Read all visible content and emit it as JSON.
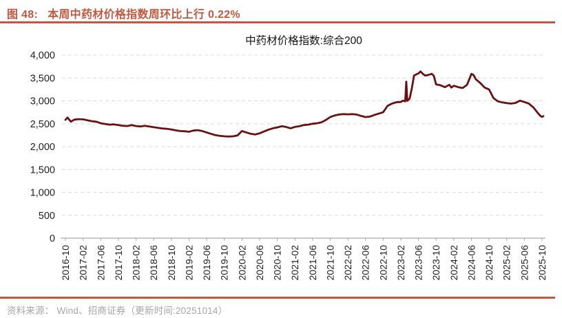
{
  "page": {
    "figure_label": "图 48:",
    "figure_title": "本周中药材价格指数周环比上行 0.22%",
    "source_note": "资料来源： Wind、招商证券（更新时间:20251014）",
    "accent_color": "#C1583E"
  },
  "chart_data": {
    "type": "line",
    "title": "中药材价格指数:综合200",
    "xlabel": "",
    "ylabel": "",
    "legend_position": "none",
    "grid": "horizontal-dashed",
    "line_color": "#6B100F",
    "grid_color": "#D9D9D9",
    "axis_color": "#A6A6A6",
    "tick_text_color": "#1f1f1f",
    "ylim": [
      0,
      4000
    ],
    "y_ticks": [
      {
        "value": 0,
        "label": "0"
      },
      {
        "value": 500,
        "label": "500"
      },
      {
        "value": 1000,
        "label": "1,000"
      },
      {
        "value": 1500,
        "label": "1,500"
      },
      {
        "value": 2000,
        "label": "2,000"
      },
      {
        "value": 2500,
        "label": "2,500"
      },
      {
        "value": 3000,
        "label": "3,000"
      },
      {
        "value": 3500,
        "label": "3,500"
      },
      {
        "value": 4000,
        "label": "4,000"
      }
    ],
    "x_start": "2016-10",
    "x_end": "2025-10",
    "x_range_months": 108,
    "x_tick_labels": [
      "2016-10",
      "2017-02",
      "2017-06",
      "2017-10",
      "2018-02",
      "2018-06",
      "2018-10",
      "2019-02",
      "2019-06",
      "2019-10",
      "2020-02",
      "2020-06",
      "2020-10",
      "2021-02",
      "2021-06",
      "2021-10",
      "2022-02",
      "2022-06",
      "2022-10",
      "2023-02",
      "2023-06",
      "2023-10",
      "2024-02",
      "2024-06",
      "2024-10",
      "2025-02",
      "2025-06",
      "2025-10"
    ],
    "series": [
      {
        "name": "中药材价格指数:综合200",
        "points": [
          [
            "2016-10-01",
            2585
          ],
          [
            "2016-10-15",
            2635
          ],
          [
            "2016-11-08",
            2545
          ],
          [
            "2016-12-01",
            2590
          ],
          [
            "2017-01-01",
            2600
          ],
          [
            "2017-02-01",
            2595
          ],
          [
            "2017-03-01",
            2575
          ],
          [
            "2017-04-01",
            2555
          ],
          [
            "2017-05-01",
            2545
          ],
          [
            "2017-06-01",
            2510
          ],
          [
            "2017-07-01",
            2495
          ],
          [
            "2017-08-01",
            2480
          ],
          [
            "2017-09-01",
            2485
          ],
          [
            "2017-10-01",
            2470
          ],
          [
            "2017-11-01",
            2455
          ],
          [
            "2017-12-01",
            2450
          ],
          [
            "2018-01-01",
            2470
          ],
          [
            "2018-02-01",
            2450
          ],
          [
            "2018-03-01",
            2440
          ],
          [
            "2018-04-01",
            2455
          ],
          [
            "2018-05-01",
            2440
          ],
          [
            "2018-06-01",
            2425
          ],
          [
            "2018-07-01",
            2410
          ],
          [
            "2018-08-01",
            2395
          ],
          [
            "2018-09-01",
            2390
          ],
          [
            "2018-10-01",
            2375
          ],
          [
            "2018-11-01",
            2355
          ],
          [
            "2018-12-01",
            2340
          ],
          [
            "2019-01-01",
            2335
          ],
          [
            "2019-02-01",
            2325
          ],
          [
            "2019-03-01",
            2350
          ],
          [
            "2019-04-01",
            2360
          ],
          [
            "2019-05-01",
            2340
          ],
          [
            "2019-06-01",
            2310
          ],
          [
            "2019-07-01",
            2280
          ],
          [
            "2019-08-01",
            2250
          ],
          [
            "2019-09-01",
            2235
          ],
          [
            "2019-10-01",
            2225
          ],
          [
            "2019-11-01",
            2220
          ],
          [
            "2019-12-01",
            2225
          ],
          [
            "2020-01-01",
            2245
          ],
          [
            "2020-02-01",
            2340
          ],
          [
            "2020-03-01",
            2310
          ],
          [
            "2020-04-01",
            2280
          ],
          [
            "2020-05-01",
            2265
          ],
          [
            "2020-06-01",
            2290
          ],
          [
            "2020-07-01",
            2330
          ],
          [
            "2020-08-01",
            2370
          ],
          [
            "2020-09-01",
            2400
          ],
          [
            "2020-10-01",
            2420
          ],
          [
            "2020-11-01",
            2445
          ],
          [
            "2020-12-01",
            2430
          ],
          [
            "2021-01-01",
            2400
          ],
          [
            "2021-02-01",
            2430
          ],
          [
            "2021-03-01",
            2445
          ],
          [
            "2021-04-01",
            2470
          ],
          [
            "2021-05-01",
            2480
          ],
          [
            "2021-06-01",
            2500
          ],
          [
            "2021-07-01",
            2510
          ],
          [
            "2021-08-01",
            2530
          ],
          [
            "2021-09-01",
            2580
          ],
          [
            "2021-10-01",
            2645
          ],
          [
            "2021-11-01",
            2680
          ],
          [
            "2021-12-01",
            2700
          ],
          [
            "2022-01-01",
            2710
          ],
          [
            "2022-02-01",
            2705
          ],
          [
            "2022-03-01",
            2710
          ],
          [
            "2022-04-01",
            2700
          ],
          [
            "2022-05-01",
            2670
          ],
          [
            "2022-06-01",
            2645
          ],
          [
            "2022-07-01",
            2655
          ],
          [
            "2022-08-01",
            2690
          ],
          [
            "2022-09-01",
            2720
          ],
          [
            "2022-10-01",
            2750
          ],
          [
            "2022-11-01",
            2890
          ],
          [
            "2022-12-01",
            2940
          ],
          [
            "2023-01-01",
            2970
          ],
          [
            "2023-02-01",
            2975
          ],
          [
            "2023-02-15",
            3005
          ],
          [
            "2023-03-01",
            2990
          ],
          [
            "2023-03-08",
            3420
          ],
          [
            "2023-03-15",
            3000
          ],
          [
            "2023-04-01",
            3050
          ],
          [
            "2023-04-15",
            3260
          ],
          [
            "2023-05-01",
            3555
          ],
          [
            "2023-06-01",
            3600
          ],
          [
            "2023-06-15",
            3640
          ],
          [
            "2023-07-01",
            3590
          ],
          [
            "2023-07-15",
            3555
          ],
          [
            "2023-08-01",
            3560
          ],
          [
            "2023-09-01",
            3590
          ],
          [
            "2023-09-15",
            3550
          ],
          [
            "2023-10-01",
            3360
          ],
          [
            "2023-11-01",
            3340
          ],
          [
            "2023-12-01",
            3300
          ],
          [
            "2024-01-01",
            3350
          ],
          [
            "2024-01-15",
            3290
          ],
          [
            "2024-02-01",
            3330
          ],
          [
            "2024-03-01",
            3300
          ],
          [
            "2024-04-01",
            3280
          ],
          [
            "2024-05-01",
            3350
          ],
          [
            "2024-05-15",
            3460
          ],
          [
            "2024-06-01",
            3590
          ],
          [
            "2024-06-15",
            3565
          ],
          [
            "2024-07-01",
            3470
          ],
          [
            "2024-08-01",
            3390
          ],
          [
            "2024-09-01",
            3290
          ],
          [
            "2024-10-01",
            3250
          ],
          [
            "2024-11-01",
            3060
          ],
          [
            "2024-12-01",
            2990
          ],
          [
            "2025-01-01",
            2965
          ],
          [
            "2025-02-01",
            2950
          ],
          [
            "2025-03-01",
            2940
          ],
          [
            "2025-04-01",
            2955
          ],
          [
            "2025-05-01",
            3005
          ],
          [
            "2025-06-01",
            2975
          ],
          [
            "2025-07-01",
            2940
          ],
          [
            "2025-08-01",
            2860
          ],
          [
            "2025-09-01",
            2740
          ],
          [
            "2025-09-20",
            2670
          ],
          [
            "2025-10-01",
            2650
          ],
          [
            "2025-10-10",
            2665
          ]
        ]
      }
    ]
  }
}
